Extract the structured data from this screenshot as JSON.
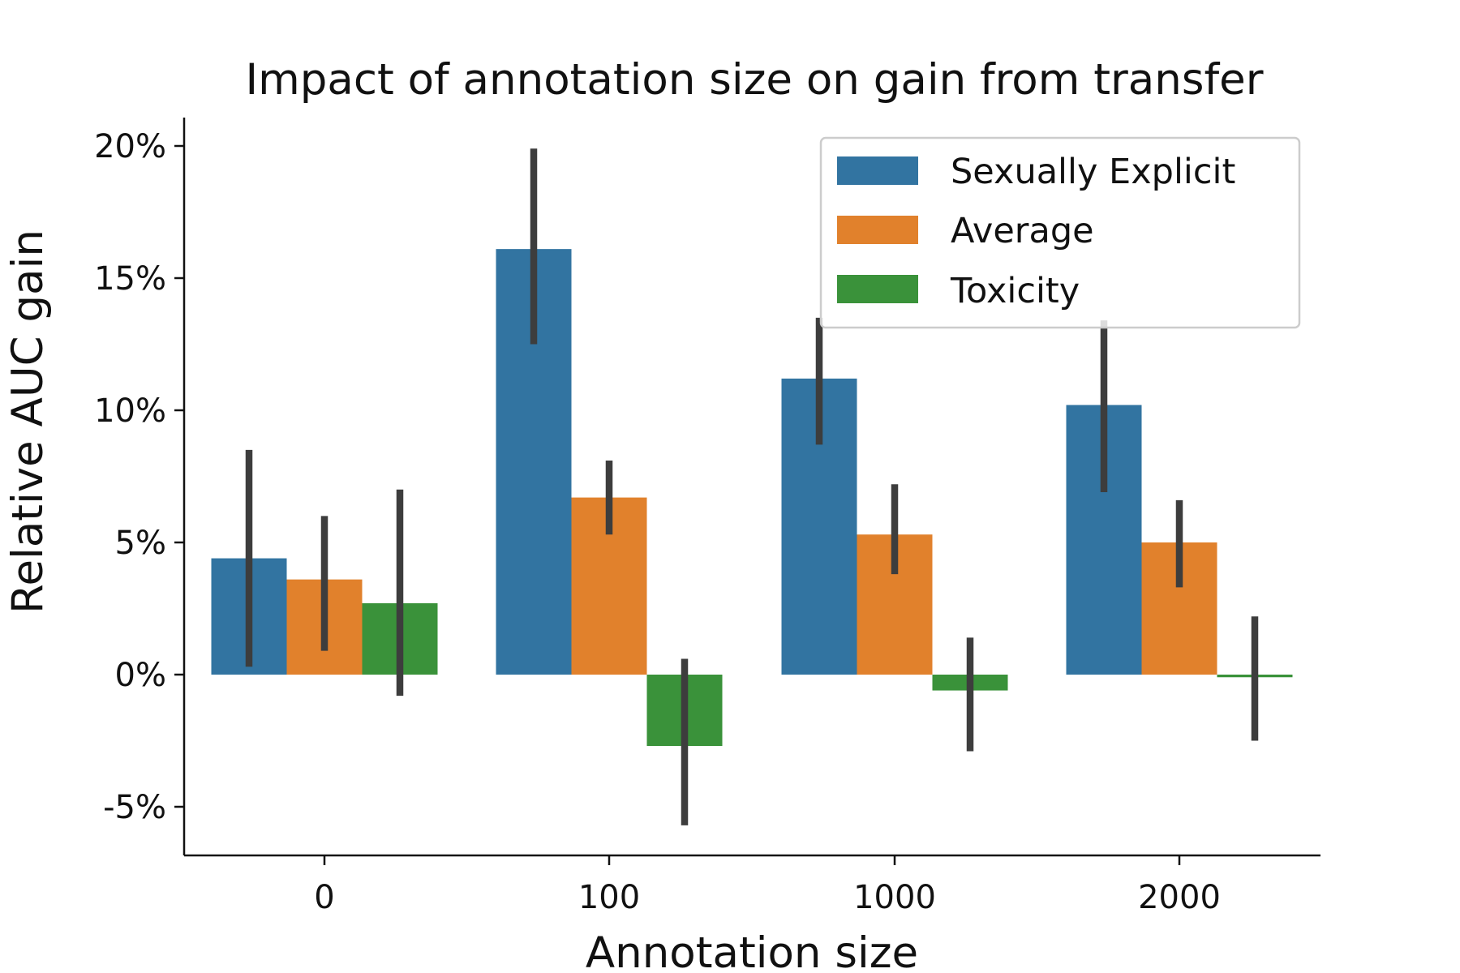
{
  "chart_data": {
    "type": "bar",
    "title": "Impact of annotation size on gain from transfer",
    "xlabel": "Annotation size",
    "ylabel": "Relative AUC gain",
    "categories": [
      "0",
      "100",
      "1000",
      "2000"
    ],
    "yticks": [
      -5,
      0,
      5,
      10,
      15,
      20
    ],
    "ytick_labels": [
      "-5%",
      "0%",
      "5%",
      "10%",
      "15%",
      "20%"
    ],
    "ylim": [
      -6.8,
      21
    ],
    "grid": false,
    "legend_position": "top-right",
    "series": [
      {
        "name": "Sexually Explicit",
        "color": "#3274a1",
        "values": [
          4.4,
          16.1,
          11.2,
          10.2
        ],
        "error_low": [
          0.3,
          12.5,
          8.7,
          6.9
        ],
        "error_high": [
          8.5,
          19.9,
          13.5,
          13.4
        ]
      },
      {
        "name": "Average",
        "color": "#e1812c",
        "values": [
          3.6,
          6.7,
          5.3,
          5.0
        ],
        "error_low": [
          0.9,
          5.3,
          3.8,
          3.3
        ],
        "error_high": [
          6.0,
          8.1,
          7.2,
          6.6
        ]
      },
      {
        "name": "Toxicity",
        "color": "#3a923a",
        "values": [
          2.7,
          -2.7,
          -0.6,
          -0.1
        ],
        "error_low": [
          -0.8,
          -5.7,
          -2.9,
          -2.5
        ],
        "error_high": [
          7.0,
          0.6,
          1.4,
          2.2
        ]
      }
    ]
  }
}
